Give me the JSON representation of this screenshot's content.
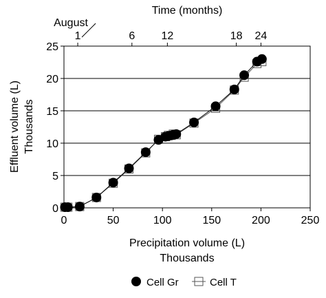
{
  "chart_data": {
    "type": "line",
    "title": "",
    "xlabel": "Precipitation volume (L)",
    "xlabel_unit": "Thousands",
    "ylabel": "Effluent volume (L)",
    "ylabel_unit": "Thousands",
    "xlim": [
      0,
      250
    ],
    "ylim": [
      0,
      25
    ],
    "x_ticks": [
      0,
      50,
      100,
      150,
      200,
      250
    ],
    "y_ticks": [
      0,
      5,
      10,
      15,
      20,
      25
    ],
    "grid": "horizontal",
    "legend_position": "bottom",
    "top_axis": {
      "label": "Time (months)",
      "annotation": "August",
      "ticks": [
        {
          "label": "1",
          "x": 14
        },
        {
          "label": "6",
          "x": 69
        },
        {
          "label": "12",
          "x": 105
        },
        {
          "label": "18",
          "x": 175
        },
        {
          "label": "24",
          "x": 200
        }
      ]
    },
    "series": [
      {
        "name": "Cell Gr",
        "marker": "circle",
        "color": "#000000",
        "x": [
          1,
          4,
          16,
          33,
          50,
          66,
          83,
          96,
          103,
          106,
          109,
          111,
          114,
          132,
          154,
          173,
          183,
          196,
          201
        ],
        "y": [
          0.1,
          0.1,
          0.2,
          1.6,
          3.9,
          6.1,
          8.6,
          10.5,
          11.0,
          11.1,
          11.2,
          11.3,
          11.4,
          13.2,
          15.7,
          18.3,
          20.5,
          22.6,
          23.0
        ]
      },
      {
        "name": "Cell T",
        "marker": "square",
        "color": "#555555",
        "x": [
          1,
          4,
          16,
          33,
          50,
          66,
          83,
          96,
          103,
          106,
          109,
          111,
          114,
          132,
          154,
          173,
          183,
          196,
          201
        ],
        "y": [
          0.1,
          0.1,
          0.2,
          1.6,
          3.8,
          6.0,
          8.5,
          10.6,
          11.0,
          11.2,
          11.2,
          11.4,
          11.3,
          13.1,
          15.4,
          18.2,
          20.2,
          22.3,
          22.6
        ]
      }
    ]
  }
}
